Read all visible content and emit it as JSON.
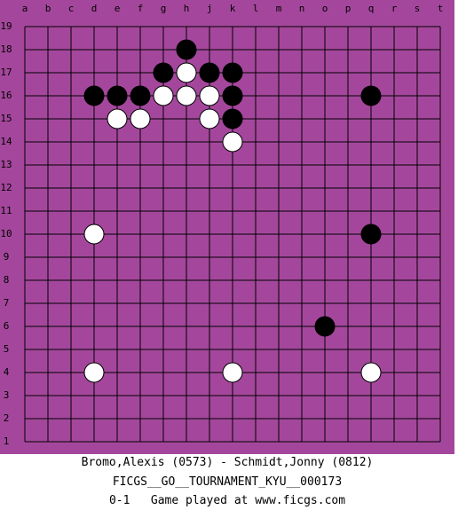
{
  "board": {
    "columns": [
      "a",
      "b",
      "c",
      "d",
      "e",
      "f",
      "g",
      "h",
      "j",
      "k",
      "l",
      "m",
      "n",
      "o",
      "p",
      "q",
      "r",
      "s",
      "t"
    ],
    "rows": [
      "19",
      "18",
      "17",
      "16",
      "15",
      "14",
      "13",
      "12",
      "11",
      "10",
      "9",
      "8",
      "7",
      "6",
      "5",
      "4",
      "3",
      "2",
      "1"
    ],
    "background": "#a4479c",
    "stones": [
      {
        "color": "black",
        "point": "h18"
      },
      {
        "color": "black",
        "point": "g17"
      },
      {
        "color": "black",
        "point": "j17"
      },
      {
        "color": "black",
        "point": "k17"
      },
      {
        "color": "black",
        "point": "d16"
      },
      {
        "color": "black",
        "point": "e16"
      },
      {
        "color": "black",
        "point": "f16"
      },
      {
        "color": "black",
        "point": "k16"
      },
      {
        "color": "black",
        "point": "q16"
      },
      {
        "color": "black",
        "point": "k15"
      },
      {
        "color": "black",
        "point": "q10"
      },
      {
        "color": "black",
        "point": "o6"
      },
      {
        "color": "white",
        "point": "h17"
      },
      {
        "color": "white",
        "point": "g16"
      },
      {
        "color": "white",
        "point": "h16"
      },
      {
        "color": "white",
        "point": "j16"
      },
      {
        "color": "white",
        "point": "e15"
      },
      {
        "color": "white",
        "point": "f15"
      },
      {
        "color": "white",
        "point": "j15"
      },
      {
        "color": "white",
        "point": "k14"
      },
      {
        "color": "white",
        "point": "d10"
      },
      {
        "color": "white",
        "point": "d4"
      },
      {
        "color": "white",
        "point": "k4"
      },
      {
        "color": "white",
        "point": "q4"
      }
    ]
  },
  "footer": {
    "players": "Bromo,Alexis (0573) - Schmidt,Jonny (0812)",
    "event": "FICGS__GO__TOURNAMENT_KYU__000173",
    "result": "0-1   Game played at www.ficgs.com"
  }
}
